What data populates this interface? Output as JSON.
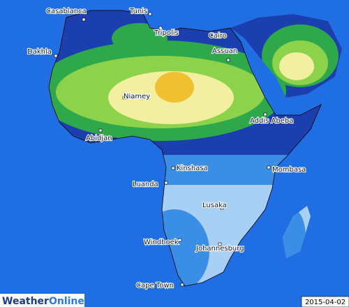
{
  "map": {
    "cities": [
      {
        "label": "Casablanca"
      },
      {
        "label": "Tunis"
      },
      {
        "label": "Tripolis"
      },
      {
        "label": "Cairo"
      },
      {
        "label": "Assuan"
      },
      {
        "label": "Dakhla"
      },
      {
        "label": "Niamey"
      },
      {
        "label": "Addis Abeba"
      },
      {
        "label": "Abidjan"
      },
      {
        "label": "Kinshasa"
      },
      {
        "label": "Mombasa"
      },
      {
        "label": "Luanda"
      },
      {
        "label": "Lusaka"
      },
      {
        "label": "Windhoek"
      },
      {
        "label": "Johannesburg"
      },
      {
        "label": "Cape Town"
      }
    ]
  },
  "logo": {
    "part1": "Weather",
    "part2": "Online"
  },
  "date": "2015-04-02"
}
